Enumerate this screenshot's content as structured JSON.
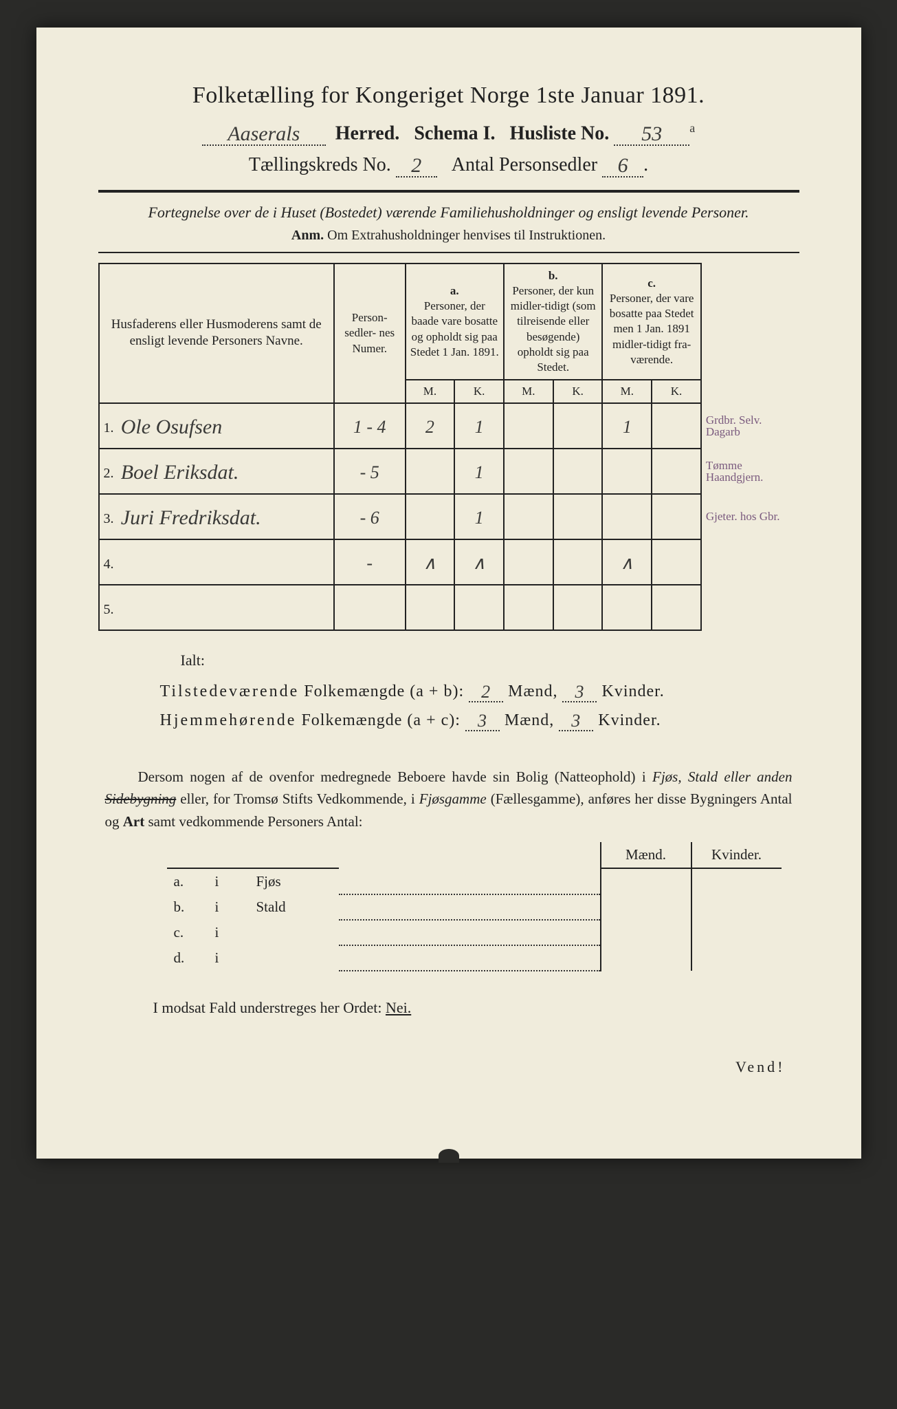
{
  "title": "Folketælling for Kongeriget Norge 1ste Januar 1891.",
  "header": {
    "herred_value": "Aaserals",
    "herred_label": "Herred.",
    "schema_label": "Schema I.",
    "husliste_label": "Husliste No.",
    "husliste_value": "53",
    "husliste_suffix": "a",
    "kreds_label": "Tællingskreds No.",
    "kreds_value": "2",
    "antal_label": "Antal Personsedler",
    "antal_value": "6"
  },
  "subtitle": "Fortegnelse over de i Huset (Bostedet) værende Familiehusholdninger og ensligt levende Personer.",
  "anm_label": "Anm.",
  "anm_text": "Om Extrahusholdninger henvises til Instruktionen.",
  "columns": {
    "name_header": "Husfaderens eller Husmoderens samt de ensligt levende Personers Navne.",
    "num_header": "Person-\nsedler-\nnes\nNumer.",
    "a_letter": "a.",
    "a_text": "Personer, der baade vare bosatte og opholdt sig paa Stedet 1 Jan. 1891.",
    "b_letter": "b.",
    "b_text": "Personer, der kun midler-tidigt (som tilreisende eller besøgende) opholdt sig paa Stedet.",
    "c_letter": "c.",
    "c_text": "Personer, der vare bosatte paa Stedet men 1 Jan. 1891 midler-tidigt fra-værende.",
    "M": "M.",
    "K": "K."
  },
  "rows": [
    {
      "n": "1.",
      "name": "Ole Osufsen",
      "num": "1 - 4",
      "aM": "2",
      "aK": "1",
      "bM": "",
      "bK": "",
      "cM": "1",
      "cK": "",
      "margin": "Grdbr. Selv. Dagarb"
    },
    {
      "n": "2.",
      "name": "Boel Eriksdat.",
      "num": "- 5",
      "aM": "",
      "aK": "1",
      "bM": "",
      "bK": "",
      "cM": "",
      "cK": "",
      "margin": "Tømme Haandgjern."
    },
    {
      "n": "3.",
      "name": "Juri Fredriksdat.",
      "num": "- 6",
      "aM": "",
      "aK": "1",
      "bM": "",
      "bK": "",
      "cM": "",
      "cK": "",
      "margin": "Gjeter. hos Gbr."
    },
    {
      "n": "4.",
      "name": "",
      "num": "-",
      "aM": "∧",
      "aK": "∧",
      "bM": "",
      "bK": "",
      "cM": "∧",
      "cK": "",
      "margin": ""
    },
    {
      "n": "5.",
      "name": "",
      "num": "",
      "aM": "",
      "aK": "",
      "bM": "",
      "bK": "",
      "cM": "",
      "cK": "",
      "margin": ""
    }
  ],
  "ialt": {
    "title": "Ialt:",
    "line1_a": "Tilstedeværende",
    "line1_b": "Folkemængde (a + b):",
    "line2_a": "Hjemmehørende",
    "line2_b": "Folkemængde (a + c):",
    "maend": "Mænd,",
    "kvinder": "Kvinder.",
    "v1m": "2",
    "v1k": "3",
    "v2m": "3",
    "v2k": "3"
  },
  "para": {
    "t1": "Dersom nogen af de ovenfor medregnede Beboere havde sin Bolig (Natteophold) i ",
    "fjos": "Fjøs, Stald eller anden ",
    "side": "Sidebygning",
    "t2": " eller, for Tromsø Stifts Vedkommende, i ",
    "fjosg": "Fjøsgamme",
    "t3": " (Fællesgamme), anføres her disse Bygningers Antal og ",
    "art": "Art",
    "t4": " samt vedkommende Personers Antal:"
  },
  "build": {
    "maend": "Mænd.",
    "kvinder": "Kvinder.",
    "rows": [
      {
        "l": "a.",
        "i": "i",
        "w": "Fjøs"
      },
      {
        "l": "b.",
        "i": "i",
        "w": "Stald"
      },
      {
        "l": "c.",
        "i": "i",
        "w": ""
      },
      {
        "l": "d.",
        "i": "i",
        "w": ""
      }
    ]
  },
  "nei": {
    "t1": "I modsat Fald understreges her Ordet: ",
    "nei": "Nei."
  },
  "vend": "Vend!"
}
